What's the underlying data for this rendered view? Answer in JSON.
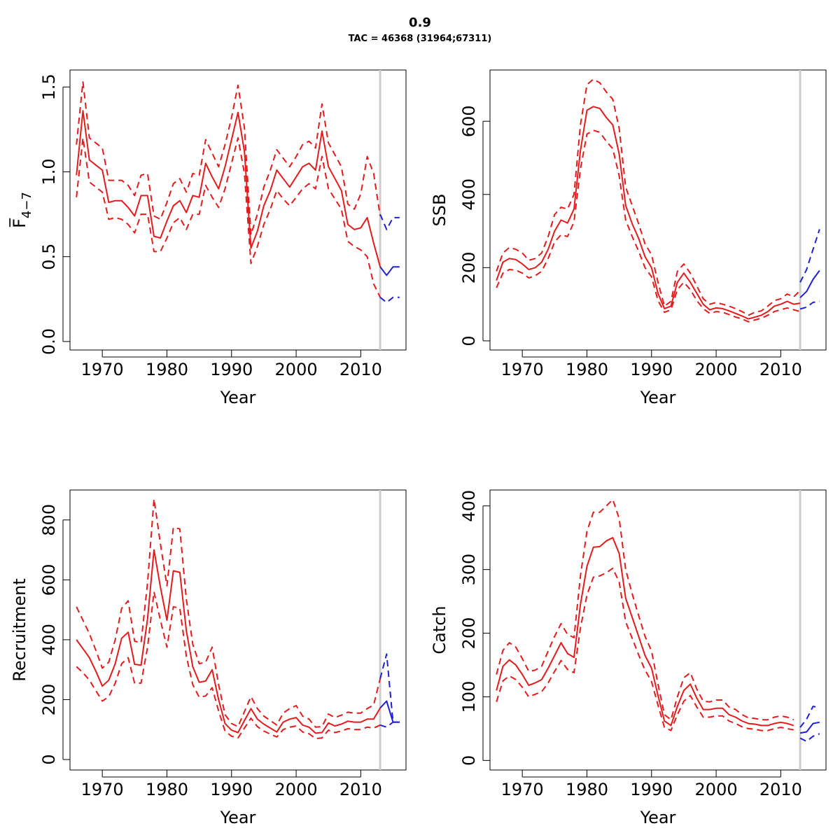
{
  "title": "0.9",
  "subtitle": "TAC = 46368 (31964;67311)",
  "colors": {
    "history": "#e41a1c",
    "forecast": "#1f1fd6",
    "divider": "#cccccc"
  },
  "chart_data": [
    {
      "type": "line",
      "xlabel": "Year",
      "ylabel": "F̅",
      "ylabel_sub": "4−7",
      "xlim": [
        1965,
        2017
      ],
      "ylim": [
        -0.05,
        1.6
      ],
      "x_ticks": [
        1970,
        1980,
        1990,
        2000,
        2010
      ],
      "x_tick_labels": [
        "1970",
        "1980",
        "1990",
        "2000",
        "2010"
      ],
      "y_ticks": [
        0,
        0.5,
        1,
        1.5
      ],
      "y_tick_labels": [
        "0.0",
        "0.5",
        "1.0",
        "1.5"
      ],
      "divider_x": 2013,
      "x": [
        1966,
        1967,
        1968,
        1969,
        1970,
        1971,
        1972,
        1973,
        1974,
        1975,
        1976,
        1977,
        1978,
        1979,
        1980,
        1981,
        1982,
        1983,
        1984,
        1985,
        1986,
        1987,
        1988,
        1989,
        1990,
        1991,
        1992,
        1993,
        1994,
        1995,
        1996,
        1997,
        1998,
        1999,
        2000,
        2001,
        2002,
        2003,
        2004,
        2005,
        2006,
        2007,
        2008,
        2009,
        2010,
        2011,
        2012,
        2013
      ],
      "series": [
        {
          "role": "estimate",
          "values": [
            0.98,
            1.36,
            1.07,
            1.04,
            1.01,
            0.82,
            0.83,
            0.83,
            0.79,
            0.74,
            0.86,
            0.86,
            0.62,
            0.61,
            0.71,
            0.8,
            0.83,
            0.76,
            0.86,
            0.85,
            1.05,
            0.97,
            0.9,
            1.03,
            1.19,
            1.35,
            1.12,
            0.55,
            0.65,
            0.8,
            0.89,
            1.01,
            0.96,
            0.91,
            0.97,
            1.03,
            1.05,
            1.01,
            1.24,
            1.03,
            0.96,
            0.89,
            0.69,
            0.66,
            0.67,
            0.73,
            0.58,
            0.44
          ]
        },
        {
          "role": "upper",
          "values": [
            1.16,
            1.53,
            1.2,
            1.17,
            1.14,
            0.95,
            0.95,
            0.95,
            0.92,
            0.86,
            0.98,
            0.99,
            0.74,
            0.72,
            0.82,
            0.93,
            0.96,
            0.88,
            0.99,
            0.98,
            1.19,
            1.11,
            1.03,
            1.16,
            1.32,
            1.51,
            1.26,
            0.63,
            0.75,
            0.91,
            1.01,
            1.13,
            1.08,
            1.03,
            1.09,
            1.16,
            1.18,
            1.14,
            1.4,
            1.17,
            1.1,
            1.03,
            0.81,
            0.78,
            0.87,
            1.09,
            0.99,
            0.74
          ]
        },
        {
          "role": "lower",
          "values": [
            0.85,
            1.2,
            0.94,
            0.91,
            0.88,
            0.72,
            0.73,
            0.72,
            0.69,
            0.64,
            0.75,
            0.75,
            0.53,
            0.53,
            0.61,
            0.7,
            0.73,
            0.66,
            0.75,
            0.75,
            0.92,
            0.85,
            0.79,
            0.9,
            1.05,
            1.2,
            0.99,
            0.46,
            0.56,
            0.69,
            0.78,
            0.89,
            0.84,
            0.8,
            0.85,
            0.9,
            0.93,
            0.9,
            1.09,
            0.9,
            0.84,
            0.78,
            0.59,
            0.56,
            0.54,
            0.5,
            0.34,
            0.26
          ]
        }
      ],
      "forecast_x": [
        2013,
        2014,
        2015,
        2016
      ],
      "forecast": [
        {
          "role": "estimate",
          "values": [
            0.44,
            0.39,
            0.44,
            0.44
          ]
        },
        {
          "role": "upper",
          "values": [
            0.75,
            0.66,
            0.73,
            0.73
          ]
        },
        {
          "role": "lower",
          "values": [
            0.26,
            0.23,
            0.26,
            0.26
          ]
        }
      ]
    },
    {
      "type": "line",
      "xlabel": "Year",
      "ylabel": "SSB",
      "xlim": [
        1965,
        2017
      ],
      "ylim": [
        -25,
        740
      ],
      "x_ticks": [
        1970,
        1980,
        1990,
        2000,
        2010
      ],
      "x_tick_labels": [
        "1970",
        "1980",
        "1990",
        "2000",
        "2010"
      ],
      "y_ticks": [
        0,
        200,
        400,
        600
      ],
      "y_tick_labels": [
        "0",
        "200",
        "400",
        "600"
      ],
      "divider_x": 2013,
      "x": [
        1966,
        1967,
        1968,
        1969,
        1970,
        1971,
        1972,
        1973,
        1974,
        1975,
        1976,
        1977,
        1978,
        1979,
        1980,
        1981,
        1982,
        1983,
        1984,
        1985,
        1986,
        1987,
        1988,
        1989,
        1990,
        1991,
        1992,
        1993,
        1994,
        1995,
        1996,
        1997,
        1998,
        1999,
        2000,
        2001,
        2002,
        2003,
        2004,
        2005,
        2006,
        2007,
        2008,
        2009,
        2010,
        2011,
        2012,
        2013
      ],
      "series": [
        {
          "role": "estimate",
          "values": [
            165,
            215,
            225,
            222,
            210,
            195,
            200,
            215,
            250,
            300,
            330,
            322,
            360,
            520,
            630,
            640,
            635,
            610,
            590,
            510,
            370,
            320,
            280,
            230,
            200,
            130,
            88,
            95,
            160,
            185,
            160,
            130,
            100,
            85,
            90,
            88,
            82,
            75,
            68,
            60,
            65,
            70,
            80,
            95,
            100,
            108,
            100,
            103
          ]
        },
        {
          "role": "upper",
          "values": [
            190,
            240,
            255,
            250,
            240,
            220,
            225,
            240,
            285,
            345,
            365,
            360,
            400,
            590,
            700,
            715,
            705,
            680,
            660,
            580,
            420,
            370,
            320,
            265,
            235,
            160,
            95,
            108,
            190,
            210,
            185,
            150,
            115,
            100,
            105,
            100,
            95,
            88,
            80,
            70,
            78,
            82,
            95,
            110,
            115,
            128,
            120,
            138
          ]
        },
        {
          "role": "lower",
          "values": [
            145,
            185,
            195,
            193,
            185,
            172,
            178,
            190,
            225,
            270,
            290,
            285,
            325,
            470,
            565,
            575,
            570,
            545,
            525,
            450,
            330,
            285,
            245,
            200,
            175,
            110,
            78,
            85,
            140,
            160,
            140,
            110,
            88,
            75,
            80,
            78,
            72,
            65,
            60,
            52,
            57,
            62,
            70,
            80,
            85,
            90,
            85,
            80
          ]
        }
      ],
      "forecast_x": [
        2013,
        2014,
        2015,
        2016
      ],
      "forecast": [
        {
          "role": "estimate",
          "values": [
            118,
            135,
            168,
            192
          ]
        },
        {
          "role": "upper",
          "values": [
            160,
            195,
            250,
            305
          ]
        },
        {
          "role": "lower",
          "values": [
            87,
            92,
            105,
            108
          ]
        }
      ]
    },
    {
      "type": "line",
      "xlabel": "Year",
      "ylabel": "Recruitment",
      "xlim": [
        1965,
        2017
      ],
      "ylim": [
        -35,
        900
      ],
      "x_ticks": [
        1970,
        1980,
        1990,
        2000,
        2010
      ],
      "x_tick_labels": [
        "1970",
        "1980",
        "1990",
        "2000",
        "2010"
      ],
      "y_ticks": [
        0,
        200,
        400,
        600,
        800
      ],
      "y_tick_labels": [
        "0",
        "200",
        "400",
        "600",
        "800"
      ],
      "divider_x": 2013,
      "x": [
        1966,
        1967,
        1968,
        1969,
        1970,
        1971,
        1972,
        1973,
        1974,
        1975,
        1976,
        1977,
        1978,
        1979,
        1980,
        1981,
        1982,
        1983,
        1984,
        1985,
        1986,
        1987,
        1988,
        1989,
        1990,
        1991,
        1992,
        1993,
        1994,
        1995,
        1996,
        1997,
        1998,
        1999,
        2000,
        2001,
        2002,
        2003,
        2004,
        2005,
        2006,
        2007,
        2008,
        2009,
        2010,
        2011,
        2012,
        2013
      ],
      "series": [
        {
          "role": "estimate",
          "values": [
            400,
            370,
            340,
            295,
            245,
            265,
            320,
            405,
            425,
            318,
            315,
            470,
            700,
            575,
            465,
            630,
            625,
            430,
            310,
            258,
            262,
            300,
            200,
            120,
            98,
            90,
            130,
            170,
            135,
            118,
            105,
            92,
            125,
            135,
            140,
            115,
            108,
            88,
            90,
            122,
            112,
            118,
            128,
            125,
            125,
            135,
            135,
            172
          ]
        },
        {
          "role": "upper",
          "values": [
            510,
            465,
            420,
            365,
            305,
            325,
            400,
            505,
            530,
            395,
            390,
            590,
            870,
            720,
            580,
            775,
            770,
            535,
            385,
            320,
            325,
            375,
            250,
            150,
            120,
            110,
            160,
            210,
            170,
            145,
            130,
            115,
            155,
            170,
            180,
            145,
            135,
            108,
            110,
            152,
            140,
            148,
            158,
            155,
            155,
            170,
            182,
            270
          ]
        },
        {
          "role": "lower",
          "values": [
            310,
            290,
            265,
            230,
            195,
            210,
            255,
            320,
            340,
            255,
            255,
            375,
            560,
            465,
            375,
            510,
            505,
            345,
            250,
            208,
            212,
            240,
            162,
            95,
            78,
            72,
            105,
            138,
            110,
            95,
            85,
            75,
            100,
            108,
            112,
            92,
            86,
            70,
            72,
            98,
            90,
            95,
            103,
            100,
            100,
            108,
            105,
            115
          ]
        }
      ],
      "forecast_x": [
        2013,
        2014,
        2015,
        2016
      ],
      "forecast": [
        {
          "role": "estimate",
          "values": [
            172,
            195,
            125,
            125
          ]
        },
        {
          "role": "upper",
          "values": [
            270,
            352,
            125,
            125
          ]
        },
        {
          "role": "lower",
          "values": [
            115,
            108,
            125,
            125
          ]
        }
      ]
    },
    {
      "type": "line",
      "xlabel": "Year",
      "ylabel": "Catch",
      "xlim": [
        1965,
        2017
      ],
      "ylim": [
        -15,
        425
      ],
      "x_ticks": [
        1970,
        1980,
        1990,
        2000,
        2010
      ],
      "x_tick_labels": [
        "1970",
        "1980",
        "1990",
        "2000",
        "2010"
      ],
      "y_ticks": [
        0,
        100,
        200,
        300,
        400
      ],
      "y_tick_labels": [
        "0",
        "100",
        "200",
        "300",
        "400"
      ],
      "divider_x": 2013,
      "x": [
        1966,
        1967,
        1968,
        1969,
        1970,
        1971,
        1972,
        1973,
        1974,
        1975,
        1976,
        1977,
        1978,
        1979,
        1980,
        1981,
        1982,
        1983,
        1984,
        1985,
        1986,
        1987,
        1988,
        1989,
        1990,
        1991,
        1992,
        1993,
        1994,
        1995,
        1996,
        1997,
        1998,
        1999,
        2000,
        2001,
        2002,
        2003,
        2004,
        2005,
        2006,
        2007,
        2008,
        2009,
        2010,
        2011,
        2012
      ],
      "series": [
        {
          "role": "estimate",
          "values": [
            110,
            148,
            158,
            150,
            135,
            118,
            122,
            127,
            145,
            165,
            185,
            168,
            162,
            245,
            305,
            335,
            336,
            345,
            350,
            325,
            255,
            225,
            195,
            165,
            145,
            102,
            62,
            55,
            85,
            110,
            120,
            98,
            80,
            80,
            82,
            82,
            72,
            68,
            62,
            58,
            57,
            55,
            55,
            58,
            60,
            58,
            55
          ]
        },
        {
          "role": "upper",
          "values": [
            135,
            173,
            185,
            178,
            160,
            140,
            142,
            148,
            172,
            195,
            215,
            198,
            193,
            290,
            360,
            390,
            390,
            400,
            410,
            380,
            300,
            262,
            228,
            195,
            172,
            120,
            72,
            64,
            100,
            130,
            138,
            112,
            93,
            92,
            95,
            95,
            84,
            80,
            72,
            67,
            66,
            64,
            64,
            68,
            70,
            68,
            64
          ]
        },
        {
          "role": "lower",
          "values": [
            92,
            125,
            133,
            127,
            115,
            100,
            104,
            108,
            122,
            140,
            157,
            143,
            138,
            208,
            260,
            288,
            290,
            295,
            302,
            280,
            218,
            192,
            166,
            142,
            124,
            87,
            52,
            47,
            72,
            93,
            102,
            84,
            68,
            68,
            70,
            70,
            62,
            58,
            53,
            50,
            49,
            47,
            47,
            50,
            52,
            50,
            48
          ]
        }
      ],
      "forecast_x": [
        2013,
        2014,
        2015,
        2016
      ],
      "forecast": [
        {
          "role": "estimate",
          "values": [
            43,
            45,
            58,
            60
          ]
        },
        {
          "role": "upper",
          "values": [
            52,
            65,
            85,
            83
          ]
        },
        {
          "role": "lower",
          "values": [
            35,
            30,
            38,
            42
          ]
        }
      ]
    }
  ]
}
